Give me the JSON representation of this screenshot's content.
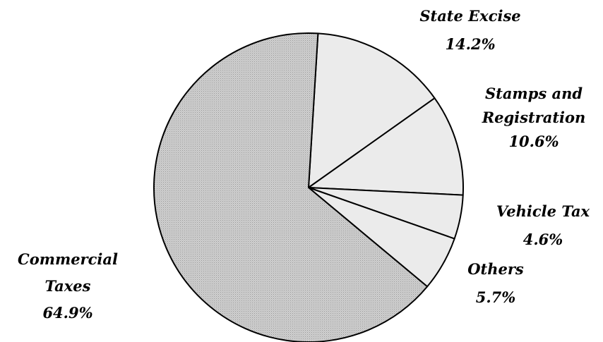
{
  "chart_data": {
    "type": "pie",
    "title": "",
    "categories": [
      "State Excise",
      "Stamps and Registration",
      "Vehicle Tax",
      "Others",
      "Commercial Taxes"
    ],
    "values": [
      14.2,
      10.6,
      4.6,
      5.7,
      64.9
    ],
    "value_labels": [
      "14.2%",
      "10.6%",
      "4.6%",
      "5.7%",
      "64.9%"
    ],
    "label_lines": [
      [
        "State Excise"
      ],
      [
        "Stamps and",
        "Registration"
      ],
      [
        "Vehicle Tax"
      ],
      [
        "Others"
      ],
      [
        "Commercial",
        "Taxes"
      ]
    ],
    "colors": [
      "#ebebeb",
      "#ebebeb",
      "#ebebeb",
      "#ebebeb",
      "#c2c2c2"
    ],
    "legend": "none",
    "start_angle_deg": 3.5,
    "direction": "clockwise"
  }
}
